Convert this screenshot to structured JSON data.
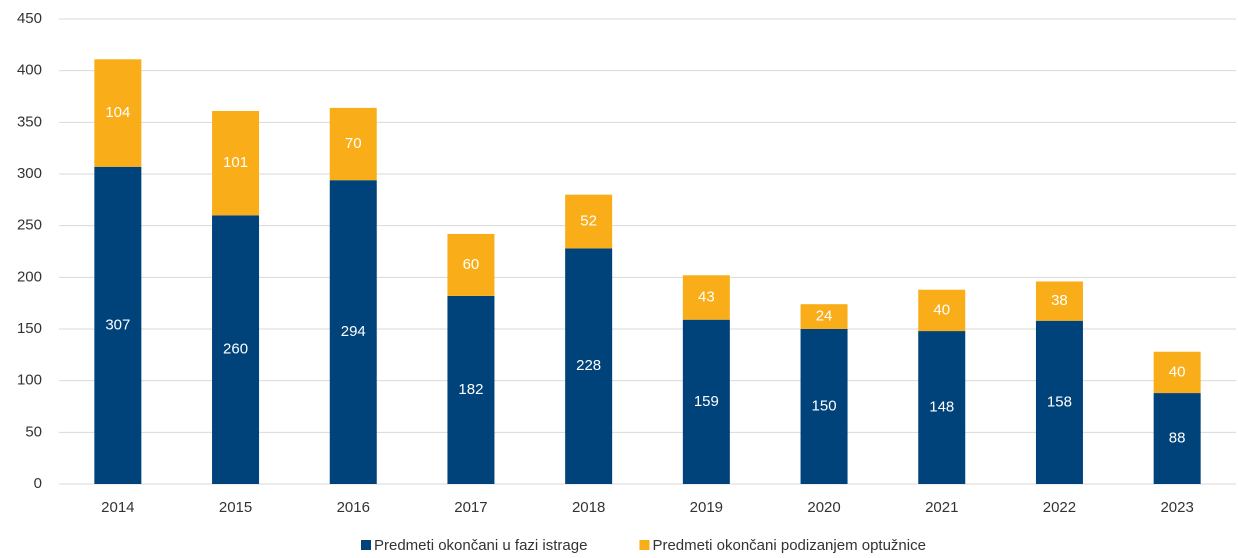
{
  "chart_data": {
    "type": "stacked_bar",
    "categories": [
      "2014",
      "2015",
      "2016",
      "2017",
      "2018",
      "2019",
      "2020",
      "2021",
      "2022",
      "2023"
    ],
    "series": [
      {
        "name": "Predmeti okončani u fazi istrage",
        "color": "#00427a",
        "values": [
          307,
          260,
          294,
          182,
          228,
          159,
          150,
          148,
          158,
          88
        ]
      },
      {
        "name": "Predmeti okončani podizanjem optužnice",
        "color": "#f9ae19",
        "values": [
          104,
          101,
          70,
          60,
          52,
          43,
          24,
          40,
          38,
          40
        ]
      }
    ],
    "ylim": [
      0,
      450
    ],
    "yticks": [
      0,
      50,
      100,
      150,
      200,
      250,
      300,
      350,
      400,
      450
    ],
    "grid": true,
    "legend": "bottom"
  }
}
